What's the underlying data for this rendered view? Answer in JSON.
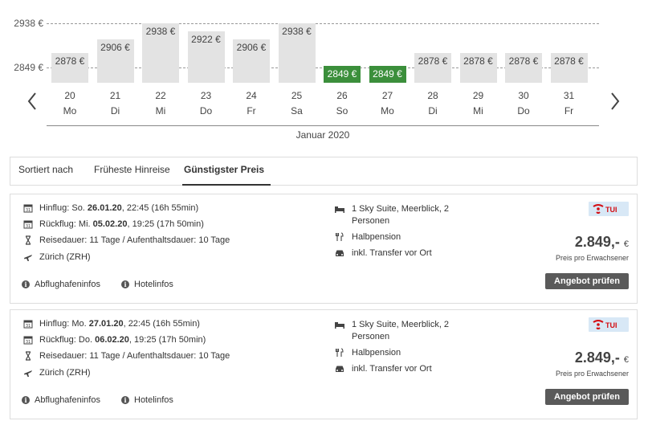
{
  "chart_data": {
    "type": "bar",
    "categories": [
      "20 Mo",
      "21 Di",
      "22 Mi",
      "23 Do",
      "24 Fr",
      "25 Sa",
      "26 So",
      "27 Mo",
      "28 Di",
      "29 Mi",
      "30 Do",
      "31 Fr"
    ],
    "days": [
      {
        "num": "20",
        "wd": "Mo",
        "value": 2878,
        "label": "2878 €",
        "cheapest": false
      },
      {
        "num": "21",
        "wd": "Di",
        "value": 2906,
        "label": "2906 €",
        "cheapest": false
      },
      {
        "num": "22",
        "wd": "Mi",
        "value": 2938,
        "label": "2938 €",
        "cheapest": false
      },
      {
        "num": "23",
        "wd": "Do",
        "value": 2922,
        "label": "2922 €",
        "cheapest": false
      },
      {
        "num": "24",
        "wd": "Fr",
        "value": 2906,
        "label": "2906 €",
        "cheapest": false
      },
      {
        "num": "25",
        "wd": "Sa",
        "value": 2938,
        "label": "2938 €",
        "cheapest": false
      },
      {
        "num": "26",
        "wd": "So",
        "value": 2849,
        "label": "2849 €",
        "cheapest": true
      },
      {
        "num": "27",
        "wd": "Mo",
        "value": 2849,
        "label": "2849 €",
        "cheapest": true
      },
      {
        "num": "28",
        "wd": "Di",
        "value": 2878,
        "label": "2878 €",
        "cheapest": false
      },
      {
        "num": "29",
        "wd": "Mi",
        "value": 2878,
        "label": "2878 €",
        "cheapest": false
      },
      {
        "num": "30",
        "wd": "Do",
        "value": 2878,
        "label": "2878 €",
        "cheapest": false
      },
      {
        "num": "31",
        "wd": "Fr",
        "value": 2878,
        "label": "2878 €",
        "cheapest": false
      }
    ],
    "y_max_label": "2938 €",
    "y_min_label": "2849 €",
    "ylim": [
      2849,
      2938
    ],
    "xlabel": "Januar 2020",
    "colors": {
      "regular": "#e3e3e3",
      "cheapest": "#3b8f3b"
    }
  },
  "nav": {
    "prev_icon": "chevron-left-icon",
    "next_icon": "chevron-right-icon"
  },
  "sort": {
    "label": "Sortiert nach",
    "options": [
      "Früheste Hinreise",
      "Günstigster Preis"
    ],
    "active": "Günstigster Preis"
  },
  "offers": [
    {
      "outbound_prefix": "Hinflug: So. ",
      "outbound_date": "26.01.20",
      "outbound_suffix": ", 22:45 (16h 55min)",
      "return_prefix": "Rückflug: Mi. ",
      "return_date": "05.02.20",
      "return_suffix": ", 19:25 (17h 50min)",
      "duration": "Reisedauer: 11 Tage / Aufenthaltsdauer: 10 Tage",
      "airport": "Zürich (ZRH)",
      "room_line1": "1 Sky Suite, Meerblick, 2",
      "room_line2": "Personen",
      "board": "Halbpension",
      "transfer": "inkl. Transfer vor Ort",
      "operator": "TUI",
      "price": "2.849,-",
      "currency": "€",
      "price_note": "Preis pro Erwachsener",
      "button": "Angebot prüfen",
      "info1": "Abflughafeninfos",
      "info2": "Hotelinfos"
    },
    {
      "outbound_prefix": "Hinflug: Mo. ",
      "outbound_date": "27.01.20",
      "outbound_suffix": ", 22:45 (16h 55min)",
      "return_prefix": "Rückflug: Do. ",
      "return_date": "06.02.20",
      "return_suffix": ", 19:25 (17h 50min)",
      "duration": "Reisedauer: 11 Tage / Aufenthaltsdauer: 10 Tage",
      "airport": "Zürich (ZRH)",
      "room_line1": "1 Sky Suite, Meerblick, 2",
      "room_line2": "Personen",
      "board": "Halbpension",
      "transfer": "inkl. Transfer vor Ort",
      "operator": "TUI",
      "price": "2.849,-",
      "currency": "€",
      "price_note": "Preis pro Erwachsener",
      "button": "Angebot prüfen",
      "info1": "Abflughafeninfos",
      "info2": "Hotelinfos"
    }
  ]
}
